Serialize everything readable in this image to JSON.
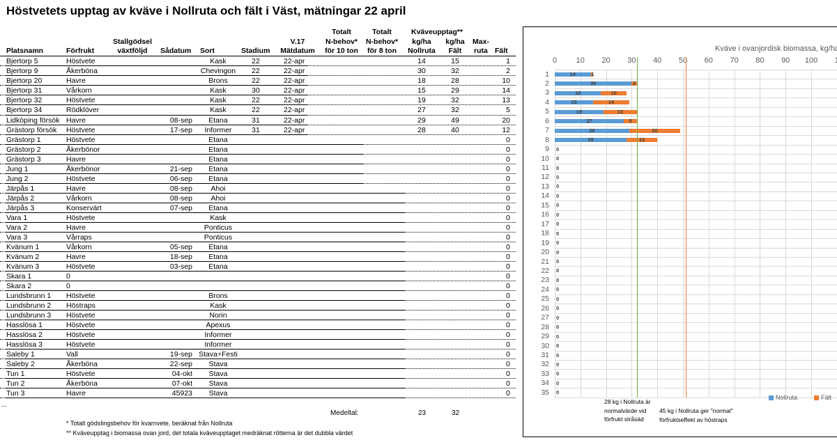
{
  "title": "Höstvetets upptag av kväve i Nollruta och fält i Väst, mätningar 22 april",
  "headers": {
    "platsnamn": "Platsnamn",
    "forfrukt": "Förfrukt",
    "stallgodsel_1": "Stallgödsel",
    "stallgodsel_2": "växtföljd",
    "sadatum": "Sådatum",
    "sort": "Sort",
    "stadium": "Stadium",
    "v17_1": "V.17",
    "v17_2": "Mätdatum",
    "n10_1": "Totalt",
    "n10_2": "N-behov*",
    "n10_3": "för 10 ton",
    "n8_1": "Totalt",
    "n8_2": "N-behov*",
    "n8_3": "för 8 ton",
    "kvave_group": "Kväveupptag**",
    "noll_1": "kg/ha",
    "noll_2": "Nollruta",
    "falt_1": "kg/ha",
    "falt_2": "Fält",
    "max_1": "Max-",
    "max_2": "ruta",
    "diff": "Fält"
  },
  "rows": [
    {
      "plats": "Bjertorp 5",
      "forfrukt": "Höstvete",
      "sadatum": "",
      "sort": "Kask",
      "stadium": "22",
      "matdatum": "22-apr",
      "noll": "14",
      "falt": "15",
      "diff": "1"
    },
    {
      "plats": "Bjertorp 9",
      "forfrukt": "Åkerböna",
      "sadatum": "",
      "sort": "Chevingon",
      "stadium": "22",
      "matdatum": "22-apr",
      "noll": "30",
      "falt": "32",
      "diff": "2"
    },
    {
      "plats": "Bjertorp 20",
      "forfrukt": "Havre",
      "sadatum": "",
      "sort": "Brons",
      "stadium": "22",
      "matdatum": "22-apr",
      "noll": "18",
      "falt": "28",
      "diff": "10"
    },
    {
      "plats": "Bjertorp 31",
      "forfrukt": "Vårkorn",
      "sadatum": "",
      "sort": "Kask",
      "stadium": "30",
      "matdatum": "22-apr",
      "noll": "15",
      "falt": "29",
      "diff": "14"
    },
    {
      "plats": "Bjertorp 32",
      "forfrukt": "Höstvete",
      "sadatum": "",
      "sort": "Kask",
      "stadium": "22",
      "matdatum": "22-apr",
      "noll": "19",
      "falt": "32",
      "diff": "13"
    },
    {
      "plats": "Bjertorp 34",
      "forfrukt": "Rödklöver",
      "sadatum": "",
      "sort": "Kask",
      "stadium": "22",
      "matdatum": "22-apr",
      "noll": "27",
      "falt": "32",
      "diff": "5"
    },
    {
      "plats": "Lidköping försök",
      "forfrukt": "Havre",
      "sadatum": "08-sep",
      "sort": "Etana",
      "stadium": "31",
      "matdatum": "22-apr",
      "noll": "29",
      "falt": "49",
      "diff": "20"
    },
    {
      "plats": "Grästorp försök",
      "forfrukt": "Höstvete",
      "sadatum": "17-sep",
      "sort": "Informer",
      "stadium": "31",
      "matdatum": "22-apr",
      "noll": "28",
      "falt": "40",
      "diff": "12"
    },
    {
      "plats": "Grästorp 1",
      "forfrukt": "Höstvete",
      "sadatum": "",
      "sort": "Etana",
      "stadium": "",
      "matdatum": "",
      "noll": "",
      "falt": "",
      "diff": "0"
    },
    {
      "plats": "Grästorp 2",
      "forfrukt": "Åkerbönor",
      "sadatum": "",
      "sort": "Etana",
      "stadium": "",
      "matdatum": "",
      "noll": "",
      "falt": "",
      "diff": "0"
    },
    {
      "plats": "Grästorp 3",
      "forfrukt": "Havre",
      "sadatum": "",
      "sort": "Etana",
      "stadium": "",
      "matdatum": "",
      "noll": "",
      "falt": "",
      "diff": "0"
    },
    {
      "plats": "Jung 1",
      "forfrukt": "Åkerbönor",
      "sadatum": "21-sep",
      "sort": "Etana",
      "stadium": "",
      "matdatum": "",
      "noll": "",
      "falt": "",
      "diff": "0"
    },
    {
      "plats": "Jung 2",
      "forfrukt": "Höstvete",
      "sadatum": "06-sep",
      "sort": "Etana",
      "stadium": "",
      "matdatum": "",
      "noll": "",
      "falt": "",
      "diff": "0"
    },
    {
      "plats": "Järpås 1",
      "forfrukt": "Havre",
      "sadatum": "08-sep",
      "sort": "Ahoi",
      "stadium": "",
      "matdatum": "",
      "noll": "",
      "falt": "",
      "diff": "0"
    },
    {
      "plats": "Järpås 2",
      "forfrukt": "Vårkorn",
      "sadatum": "08-sep",
      "sort": "Ahoi",
      "stadium": "",
      "matdatum": "",
      "noll": "",
      "falt": "",
      "diff": "0"
    },
    {
      "plats": "Järpås 3",
      "forfrukt": "Konservärt",
      "sadatum": "07-sep",
      "sort": "Etana",
      "stadium": "",
      "matdatum": "",
      "noll": "",
      "falt": "",
      "diff": "0"
    },
    {
      "plats": "Vara 1",
      "forfrukt": "Höstvete",
      "sadatum": "",
      "sort": "Kask",
      "stadium": "",
      "matdatum": "",
      "noll": "",
      "falt": "",
      "diff": "0"
    },
    {
      "plats": "Vara 2",
      "forfrukt": "Havre",
      "sadatum": "",
      "sort": "Ponticus",
      "stadium": "",
      "matdatum": "",
      "noll": "",
      "falt": "",
      "diff": "0"
    },
    {
      "plats": "Vara 3",
      "forfrukt": "Vårraps",
      "sadatum": "",
      "sort": "Ponticus",
      "stadium": "",
      "matdatum": "",
      "noll": "",
      "falt": "",
      "diff": "0"
    },
    {
      "plats": "Kvänum 1",
      "forfrukt": "Vårkorn",
      "sadatum": "05-sep",
      "sort": "Etana",
      "stadium": "",
      "matdatum": "",
      "noll": "",
      "falt": "",
      "diff": "0"
    },
    {
      "plats": "Kvänum 2",
      "forfrukt": "Havre",
      "sadatum": "18-sep",
      "sort": "Etana",
      "stadium": "",
      "matdatum": "",
      "noll": "",
      "falt": "",
      "diff": "0"
    },
    {
      "plats": "Kvänum 3",
      "forfrukt": "Höstvete",
      "sadatum": "03-sep",
      "sort": "Etana",
      "stadium": "",
      "matdatum": "",
      "noll": "",
      "falt": "",
      "diff": "0"
    },
    {
      "plats": "Skara 1",
      "forfrukt": "0",
      "sadatum": "",
      "sort": "",
      "stadium": "",
      "matdatum": "",
      "noll": "",
      "falt": "",
      "diff": "0"
    },
    {
      "plats": "Skara 2",
      "forfrukt": "0",
      "sadatum": "",
      "sort": "",
      "stadium": "",
      "matdatum": "",
      "noll": "",
      "falt": "",
      "diff": "0"
    },
    {
      "plats": "Lundsbrunn 1",
      "forfrukt": "Höstvete",
      "sadatum": "",
      "sort": "Brons",
      "stadium": "",
      "matdatum": "",
      "noll": "",
      "falt": "",
      "diff": "0"
    },
    {
      "plats": "Lundsbrunn 2",
      "forfrukt": "Höstraps",
      "sadatum": "",
      "sort": "Kask",
      "stadium": "",
      "matdatum": "",
      "noll": "",
      "falt": "",
      "diff": "0"
    },
    {
      "plats": "Lundsbrunn 3",
      "forfrukt": "Höstvete",
      "sadatum": "",
      "sort": "Norin",
      "stadium": "",
      "matdatum": "",
      "noll": "",
      "falt": "",
      "diff": "0"
    },
    {
      "plats": "Hasslösa 1",
      "forfrukt": "Höstvete",
      "sadatum": "",
      "sort": "Apexus",
      "stadium": "",
      "matdatum": "",
      "noll": "",
      "falt": "",
      "diff": "0"
    },
    {
      "plats": "Hasslösa 2",
      "forfrukt": "Höstvete",
      "sadatum": "",
      "sort": "Informer",
      "stadium": "",
      "matdatum": "",
      "noll": "",
      "falt": "",
      "diff": "0"
    },
    {
      "plats": "Hasslösa 3",
      "forfrukt": "Höstvete",
      "sadatum": "",
      "sort": "Informer",
      "stadium": "",
      "matdatum": "",
      "noll": "",
      "falt": "",
      "diff": "0"
    },
    {
      "plats": "Saleby 1",
      "forfrukt": "Vall",
      "sadatum": "19-sep",
      "sort": "Stava+Festi",
      "stadium": "",
      "matdatum": "",
      "noll": "",
      "falt": "",
      "diff": "0"
    },
    {
      "plats": "Saleby 2",
      "forfrukt": "Åkerböna",
      "sadatum": "22-sep",
      "sort": "Stava",
      "stadium": "",
      "matdatum": "",
      "noll": "",
      "falt": "",
      "diff": "0"
    },
    {
      "plats": "Tun 1",
      "forfrukt": "Höstvete",
      "sadatum": "04-okt",
      "sort": "Stava",
      "stadium": "",
      "matdatum": "",
      "noll": "",
      "falt": "",
      "diff": "0"
    },
    {
      "plats": "Tun 2",
      "forfrukt": "Åkerböna",
      "sadatum": "07-okt",
      "sort": "Stava",
      "stadium": "",
      "matdatum": "",
      "noll": "",
      "falt": "",
      "diff": "0"
    },
    {
      "plats": "Tun 3",
      "forfrukt": "Havre",
      "sadatum": "45923",
      "sort": "Stava",
      "stadium": "",
      "matdatum": "",
      "noll": "",
      "falt": "",
      "diff": "0"
    }
  ],
  "summary": {
    "label": "Medeltal:",
    "noll_avg": "23",
    "falt_avg": "32"
  },
  "footnotes": {
    "ellipsis": "...",
    "note1": "* Totalt gödslingsbehov för kvarnvete, beräknat från Nollruta",
    "note2": "** Kväveupptag i biomassa ovan jord, det totala kväveupptaget medräknat rötterna är det dubbla värdet"
  },
  "chart_data": {
    "type": "bar",
    "orientation": "horizontal",
    "stacked": true,
    "title": "Kväve i ovanjordisk biomassa, kg/ha",
    "xlabel": "Kväve i ovanjordisk biomassa, kg/ha",
    "ylabel": "",
    "xlim": [
      0,
      110
    ],
    "x_ticks": [
      "0",
      "10",
      "20",
      "30",
      "40",
      "50",
      "60",
      "70",
      "80",
      "90",
      "100",
      "1"
    ],
    "grid": true,
    "legend_position": "bottom-right",
    "categories": [
      "1",
      "2",
      "3",
      "4",
      "5",
      "6",
      "7",
      "8",
      "9",
      "10",
      "11",
      "12",
      "13",
      "14",
      "15",
      "16",
      "17",
      "18",
      "19",
      "20",
      "21",
      "22",
      "23",
      "24",
      "25",
      "26",
      "27",
      "28",
      "29",
      "30",
      "31",
      "32",
      "33",
      "34",
      "35"
    ],
    "series": [
      {
        "name": "Nollruta",
        "color": "#5b9bd5",
        "values": [
          14,
          30,
          18,
          15,
          19,
          27,
          29,
          28,
          0,
          0,
          0,
          0,
          0,
          0,
          0,
          0,
          0,
          0,
          0,
          0,
          0,
          0,
          0,
          0,
          0,
          0,
          0,
          0,
          0,
          0,
          0,
          0,
          0,
          0,
          0
        ]
      },
      {
        "name": "Fält",
        "color": "#ed7d31",
        "values": [
          1,
          2,
          10,
          14,
          13,
          5,
          20,
          12,
          null,
          null,
          null,
          null,
          null,
          null,
          null,
          null,
          null,
          null,
          null,
          null,
          null,
          null,
          null,
          null,
          null,
          null,
          null,
          null,
          null,
          null,
          null,
          null,
          null,
          null,
          null
        ]
      }
    ],
    "reference_lines": [
      {
        "x": 32,
        "color": "#70ad47",
        "annotation": "28 kg i Nollruta är normalvärde vid förfrukt stråsäd"
      },
      {
        "x": 51,
        "color": "#ed7d31",
        "annotation": "45 kg i Nollruta ger \"normal\" förfruktseffekt av höstraps"
      }
    ],
    "annotations": {
      "green_1": "28 kg i Nollruta är",
      "green_2": "normalvärde vid",
      "green_3": "förfrukt stråsäd",
      "orange_1": "45 kg i Nollruta ger \"normal\"",
      "orange_2": "förfruktseffekt av höstraps"
    },
    "legend": [
      "Nollruta",
      "Fält"
    ]
  }
}
